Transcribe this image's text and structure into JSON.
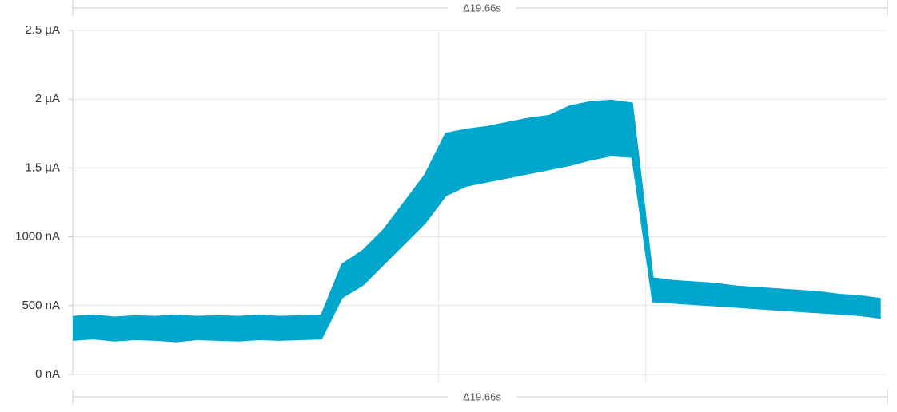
{
  "chart_data": {
    "type": "band",
    "annotations": [
      "Δ19.66s",
      "Δ19.66s"
    ],
    "x": [
      0,
      0.5,
      1,
      1.5,
      2,
      2.5,
      3,
      3.5,
      4,
      4.5,
      5,
      5.5,
      6,
      6.5,
      7,
      7.5,
      8,
      8.5,
      9,
      9.5,
      10,
      10.5,
      11,
      11.5,
      12,
      12.5,
      13,
      13.5,
      14,
      14.5,
      15,
      15.5,
      16,
      16.5,
      17,
      17.5,
      18,
      18.5,
      19,
      19.5
    ],
    "series": [
      {
        "color": "#00a6cc",
        "values": [
          250,
          260,
          245,
          255,
          250,
          240,
          255,
          250,
          245,
          255,
          250,
          255,
          260,
          560,
          650,
          800,
          950,
          1100,
          1300,
          1370,
          1400,
          1430,
          1460,
          1490,
          1520,
          1560,
          1590,
          1580,
          530,
          520,
          510,
          500,
          490,
          480,
          470,
          460,
          450,
          440,
          430,
          410
        ]
      },
      {
        "color": "#00a6cc",
        "values": [
          420,
          430,
          415,
          425,
          420,
          430,
          420,
          425,
          420,
          430,
          420,
          425,
          430,
          800,
          900,
          1050,
          1250,
          1450,
          1750,
          1780,
          1800,
          1830,
          1860,
          1880,
          1950,
          1980,
          1990,
          1970,
          700,
          680,
          670,
          660,
          640,
          630,
          620,
          610,
          600,
          580,
          570,
          550
        ]
      }
    ],
    "xlim": [
      0,
      19.66
    ],
    "xticks": [
      8.83,
      13.83
    ],
    "ylim": [
      0,
      2500
    ],
    "yticks": [
      {
        "value": 0,
        "label": "0 nA"
      },
      {
        "value": 500,
        "label": "500 nA"
      },
      {
        "value": 1000,
        "label": "1000 nA"
      },
      {
        "value": 1500,
        "label": "1.5 µA"
      },
      {
        "value": 2000,
        "label": "2 µA"
      },
      {
        "value": 2500,
        "label": "2.5 µA"
      }
    ],
    "grid": true
  }
}
